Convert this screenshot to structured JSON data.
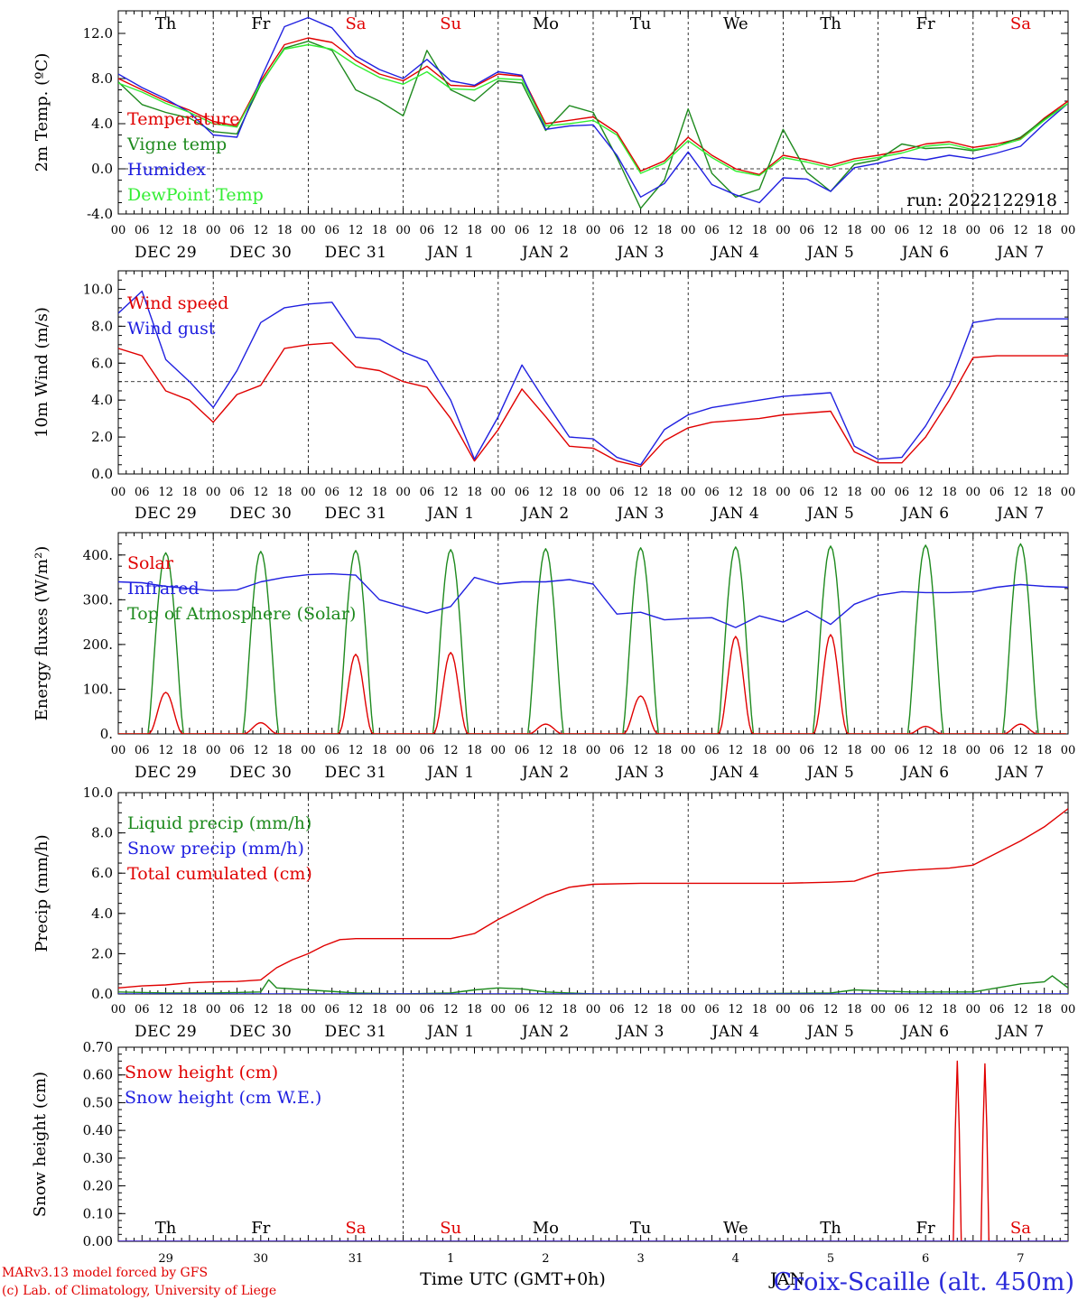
{
  "page": {
    "credit_line1": "MARv3.13 model forced by GFS",
    "credit_line2": "(c) Lab. of Climatology, University of Liege",
    "time_axis_title": "Time UTC (GMT+0h)",
    "station": "Croix-Scaille (alt. 450m)",
    "overlap_month": "JAN"
  },
  "colors": {
    "red": "#e00000",
    "green": "#1e8a1e",
    "blue": "#2020e0",
    "light_green": "#33ee33",
    "purple": "#7700aa"
  },
  "time_axis": {
    "hour_ticks": [
      "00",
      "06",
      "12",
      "18"
    ],
    "final_tick": "00",
    "date_labels": [
      "DEC 29",
      "DEC 30",
      "DEC 31",
      "JAN  1",
      "JAN  2",
      "JAN  3",
      "JAN  4",
      "JAN  5",
      "JAN  6",
      "JAN  7"
    ],
    "weekdays": [
      "Th",
      "Fr",
      "Sa",
      "Su",
      "Mo",
      "Tu",
      "We",
      "Th",
      "Fr",
      "Sa"
    ],
    "weekday_is_weekend": [
      false,
      false,
      true,
      true,
      false,
      false,
      false,
      false,
      false,
      true
    ],
    "day_numbers": [
      "29",
      "30",
      "31",
      "1",
      "2",
      "3",
      "4",
      "5",
      "6",
      "7"
    ]
  },
  "chart_data": [
    {
      "type": "line",
      "ylabel": "2m Temp. (ºC)",
      "ylim": [
        -4,
        14
      ],
      "yticks": [
        "-4.0",
        "0.0",
        "4.0",
        "8.0",
        "12.0"
      ],
      "ytick_values": [
        -4,
        0,
        4,
        8,
        12
      ],
      "x_unit": "hours since DEC 29 00 UTC",
      "reference_line": 0,
      "run_label": "run: 2022122918",
      "series": [
        {
          "name": "Temperature",
          "color": "red",
          "x": [
            0,
            6,
            12,
            18,
            24,
            30,
            36,
            42,
            48,
            54,
            60,
            66,
            72,
            78,
            84,
            90,
            96,
            102,
            108,
            114,
            120,
            126,
            132,
            138,
            144,
            150,
            156,
            162,
            168,
            174,
            180,
            186,
            192,
            198,
            204,
            210,
            216,
            222,
            228,
            234,
            240
          ],
          "y": [
            8.0,
            7.0,
            6.0,
            5.2,
            4.2,
            3.8,
            7.8,
            11.0,
            11.6,
            11.2,
            9.6,
            8.4,
            7.8,
            9.1,
            7.4,
            7.3,
            8.4,
            8.2,
            4.0,
            4.3,
            4.6,
            3.2,
            -0.2,
            0.7,
            2.8,
            1.2,
            0.0,
            -0.5,
            1.2,
            0.8,
            0.3,
            0.9,
            1.2,
            1.6,
            2.2,
            2.4,
            1.9,
            2.2,
            2.7,
            4.5,
            6.0
          ]
        },
        {
          "name": "Vigne temp",
          "color": "green",
          "x": [
            0,
            6,
            12,
            18,
            24,
            30,
            36,
            42,
            48,
            54,
            60,
            66,
            72,
            78,
            84,
            90,
            96,
            102,
            108,
            114,
            120,
            126,
            132,
            138,
            144,
            150,
            156,
            162,
            168,
            174,
            180,
            186,
            192,
            198,
            204,
            210,
            216,
            222,
            228,
            234,
            240
          ],
          "y": [
            7.7,
            5.7,
            5.0,
            4.5,
            3.3,
            3.1,
            7.5,
            10.7,
            11.3,
            10.5,
            7.0,
            6.0,
            4.7,
            10.5,
            7.0,
            6.0,
            7.8,
            7.6,
            3.4,
            5.6,
            5.0,
            1.0,
            -3.5,
            -1.0,
            5.3,
            -0.4,
            -2.5,
            -1.8,
            3.5,
            -0.3,
            -2.0,
            0.4,
            0.8,
            2.2,
            1.8,
            1.9,
            1.6,
            2.0,
            2.8,
            4.4,
            5.8
          ]
        },
        {
          "name": "Humidex",
          "color": "blue",
          "x": [
            0,
            6,
            12,
            18,
            24,
            30,
            36,
            42,
            48,
            54,
            60,
            66,
            72,
            78,
            84,
            90,
            96,
            102,
            108,
            114,
            120,
            126,
            132,
            138,
            144,
            150,
            156,
            162,
            168,
            174,
            180,
            186,
            192,
            198,
            204,
            210,
            216,
            222,
            228,
            234,
            240
          ],
          "y": [
            8.4,
            7.2,
            6.2,
            5.0,
            3.0,
            2.8,
            8.0,
            12.6,
            13.4,
            12.5,
            10.0,
            8.8,
            8.0,
            9.7,
            7.8,
            7.4,
            8.6,
            8.3,
            3.5,
            3.8,
            3.9,
            1.2,
            -2.5,
            -1.3,
            1.5,
            -1.4,
            -2.3,
            -3.0,
            -0.8,
            -0.9,
            -2.0,
            0.1,
            0.5,
            1.0,
            0.8,
            1.2,
            0.9,
            1.4,
            2.0,
            4.0,
            5.8
          ]
        },
        {
          "name": "DewPoint Temp",
          "color": "light_green",
          "x": [
            0,
            6,
            12,
            18,
            24,
            30,
            36,
            42,
            48,
            54,
            60,
            66,
            72,
            78,
            84,
            90,
            96,
            102,
            108,
            114,
            120,
            126,
            132,
            138,
            144,
            150,
            156,
            162,
            168,
            174,
            180,
            186,
            192,
            198,
            204,
            210,
            216,
            222,
            228,
            234,
            240
          ],
          "y": [
            7.6,
            6.8,
            5.8,
            5.0,
            4.0,
            3.7,
            7.6,
            10.6,
            11.0,
            10.6,
            9.2,
            8.1,
            7.5,
            8.6,
            7.1,
            7.0,
            8.0,
            7.9,
            3.8,
            4.0,
            4.3,
            3.0,
            -0.4,
            0.5,
            2.5,
            1.0,
            -0.2,
            -0.6,
            1.0,
            0.6,
            0.1,
            0.7,
            1.0,
            1.4,
            2.0,
            2.2,
            1.7,
            2.0,
            2.6,
            4.3,
            5.8
          ]
        }
      ]
    },
    {
      "type": "line",
      "ylabel": "10m Wind (m/s)",
      "ylim": [
        0,
        11
      ],
      "yticks": [
        "0.0",
        "2.0",
        "4.0",
        "6.0",
        "8.0",
        "10.0"
      ],
      "ytick_values": [
        0,
        2,
        4,
        6,
        8,
        10
      ],
      "reference_line": 5,
      "series": [
        {
          "name": "Wind speed",
          "color": "red",
          "x": [
            0,
            6,
            12,
            18,
            24,
            30,
            36,
            42,
            48,
            54,
            60,
            66,
            72,
            78,
            84,
            90,
            96,
            102,
            108,
            114,
            120,
            126,
            132,
            138,
            144,
            150,
            156,
            162,
            168,
            174,
            180,
            186,
            192,
            198,
            204,
            210,
            216,
            222,
            228,
            234,
            240
          ],
          "y": [
            6.8,
            6.4,
            4.5,
            4.0,
            2.8,
            4.3,
            4.8,
            6.8,
            7.0,
            7.1,
            5.8,
            5.6,
            5.0,
            4.7,
            3.0,
            0.7,
            2.4,
            4.6,
            3.1,
            1.5,
            1.4,
            0.7,
            0.4,
            1.8,
            2.5,
            2.8,
            2.9,
            3.0,
            3.2,
            3.3,
            3.4,
            1.2,
            0.6,
            0.6,
            2.0,
            4.0,
            6.3,
            6.4,
            6.4,
            6.4,
            6.4
          ]
        },
        {
          "name": "Wind gust",
          "color": "blue",
          "x": [
            0,
            6,
            12,
            18,
            24,
            30,
            36,
            42,
            48,
            54,
            60,
            66,
            72,
            78,
            84,
            90,
            96,
            102,
            108,
            114,
            120,
            126,
            132,
            138,
            144,
            150,
            156,
            162,
            168,
            174,
            180,
            186,
            192,
            198,
            204,
            210,
            216,
            222,
            228,
            234,
            240
          ],
          "y": [
            8.7,
            9.9,
            6.2,
            5.0,
            3.6,
            5.6,
            8.2,
            9.0,
            9.2,
            9.3,
            7.4,
            7.3,
            6.6,
            6.1,
            4.0,
            0.8,
            3.1,
            5.9,
            3.9,
            2.0,
            1.9,
            0.9,
            0.5,
            2.4,
            3.2,
            3.6,
            3.8,
            4.0,
            4.2,
            4.3,
            4.4,
            1.5,
            0.8,
            0.9,
            2.6,
            4.8,
            8.2,
            8.4,
            8.4,
            8.4,
            8.4
          ]
        }
      ]
    },
    {
      "type": "line",
      "ylabel": "Energy fluxes (W/m²)",
      "ylim": [
        0,
        450
      ],
      "yticks": [
        "0.",
        "100.",
        "200.",
        "300.",
        "400."
      ],
      "ytick_values": [
        0,
        100,
        200,
        300,
        400
      ],
      "daily_solar_peak": [
        93,
        25,
        178,
        182,
        22,
        85,
        218,
        222,
        17,
        22
      ],
      "daily_toa_peak": [
        405,
        408,
        410,
        412,
        414,
        416,
        418,
        420,
        422,
        425
      ],
      "series": [
        {
          "name": "Solar",
          "color": "red"
        },
        {
          "name": "Infrared",
          "color": "blue",
          "x": [
            0,
            6,
            12,
            18,
            24,
            30,
            36,
            42,
            48,
            54,
            60,
            66,
            72,
            78,
            84,
            90,
            96,
            102,
            108,
            114,
            120,
            126,
            132,
            138,
            144,
            150,
            156,
            162,
            168,
            174,
            180,
            186,
            192,
            198,
            204,
            210,
            216,
            222,
            228,
            234,
            240
          ],
          "y": [
            340,
            338,
            330,
            325,
            320,
            322,
            340,
            350,
            356,
            358,
            355,
            300,
            285,
            270,
            285,
            350,
            335,
            340,
            340,
            345,
            335,
            268,
            272,
            255,
            258,
            260,
            238,
            264,
            250,
            275,
            245,
            290,
            310,
            318,
            316,
            316,
            318,
            328,
            334,
            330,
            328
          ]
        },
        {
          "name": "Top of Atmosphere (Solar)",
          "color": "green"
        }
      ]
    },
    {
      "type": "line",
      "ylabel": "Precip (mm/h)",
      "ylim": [
        0,
        10
      ],
      "yticks": [
        "0.0",
        "2.0",
        "4.0",
        "6.0",
        "8.0",
        "10.0"
      ],
      "ytick_values": [
        0,
        2,
        4,
        6,
        8,
        10
      ],
      "series": [
        {
          "name": "Liquid precip (mm/h)",
          "color": "green",
          "x": [
            0,
            12,
            24,
            36,
            38,
            40,
            48,
            60,
            72,
            84,
            90,
            96,
            102,
            108,
            114,
            120,
            150,
            180,
            186,
            200,
            216,
            222,
            228,
            234,
            236,
            240
          ],
          "y": [
            0.1,
            0.05,
            0.05,
            0.1,
            0.7,
            0.3,
            0.2,
            0.05,
            0.0,
            0.05,
            0.2,
            0.3,
            0.25,
            0.1,
            0.05,
            0.0,
            0.0,
            0.05,
            0.2,
            0.1,
            0.1,
            0.3,
            0.5,
            0.6,
            0.9,
            0.3
          ]
        },
        {
          "name": "Snow precip (mm/h)",
          "color": "blue",
          "x": [
            0,
            240
          ],
          "y": [
            0,
            0
          ]
        },
        {
          "name": "Total cumulated (cm)",
          "color": "red",
          "x": [
            0,
            6,
            12,
            18,
            24,
            30,
            36,
            40,
            44,
            48,
            52,
            56,
            60,
            72,
            84,
            90,
            96,
            102,
            108,
            114,
            120,
            132,
            144,
            156,
            168,
            180,
            186,
            192,
            200,
            210,
            216,
            222,
            228,
            234,
            240
          ],
          "y": [
            0.3,
            0.4,
            0.45,
            0.55,
            0.6,
            0.62,
            0.7,
            1.3,
            1.7,
            2.0,
            2.4,
            2.7,
            2.75,
            2.75,
            2.75,
            3.0,
            3.7,
            4.3,
            4.9,
            5.3,
            5.45,
            5.5,
            5.5,
            5.5,
            5.5,
            5.55,
            5.6,
            6.0,
            6.15,
            6.25,
            6.4,
            7.0,
            7.6,
            8.3,
            9.2
          ]
        }
      ]
    },
    {
      "type": "line",
      "ylabel": "Snow height (cm)",
      "ylim": [
        0,
        0.7
      ],
      "yticks": [
        "0.00",
        "0.10",
        "0.20",
        "0.30",
        "0.40",
        "0.50",
        "0.60",
        "0.70"
      ],
      "ytick_values": [
        0,
        0.1,
        0.2,
        0.3,
        0.4,
        0.5,
        0.6,
        0.7
      ],
      "series": [
        {
          "name": "Snow height (cm)",
          "color": "red",
          "x": [
            0,
            211,
            211.5,
            212,
            212.5,
            213,
            218,
            218.5,
            219,
            219.5,
            220,
            240
          ],
          "y": [
            0,
            0,
            0.4,
            0.65,
            0.4,
            0,
            0,
            0.4,
            0.64,
            0.4,
            0,
            0
          ]
        },
        {
          "name": "Snow height (cm W.E.)",
          "color": "blue",
          "x": [
            0,
            240
          ],
          "y": [
            0,
            0
          ]
        }
      ]
    }
  ]
}
